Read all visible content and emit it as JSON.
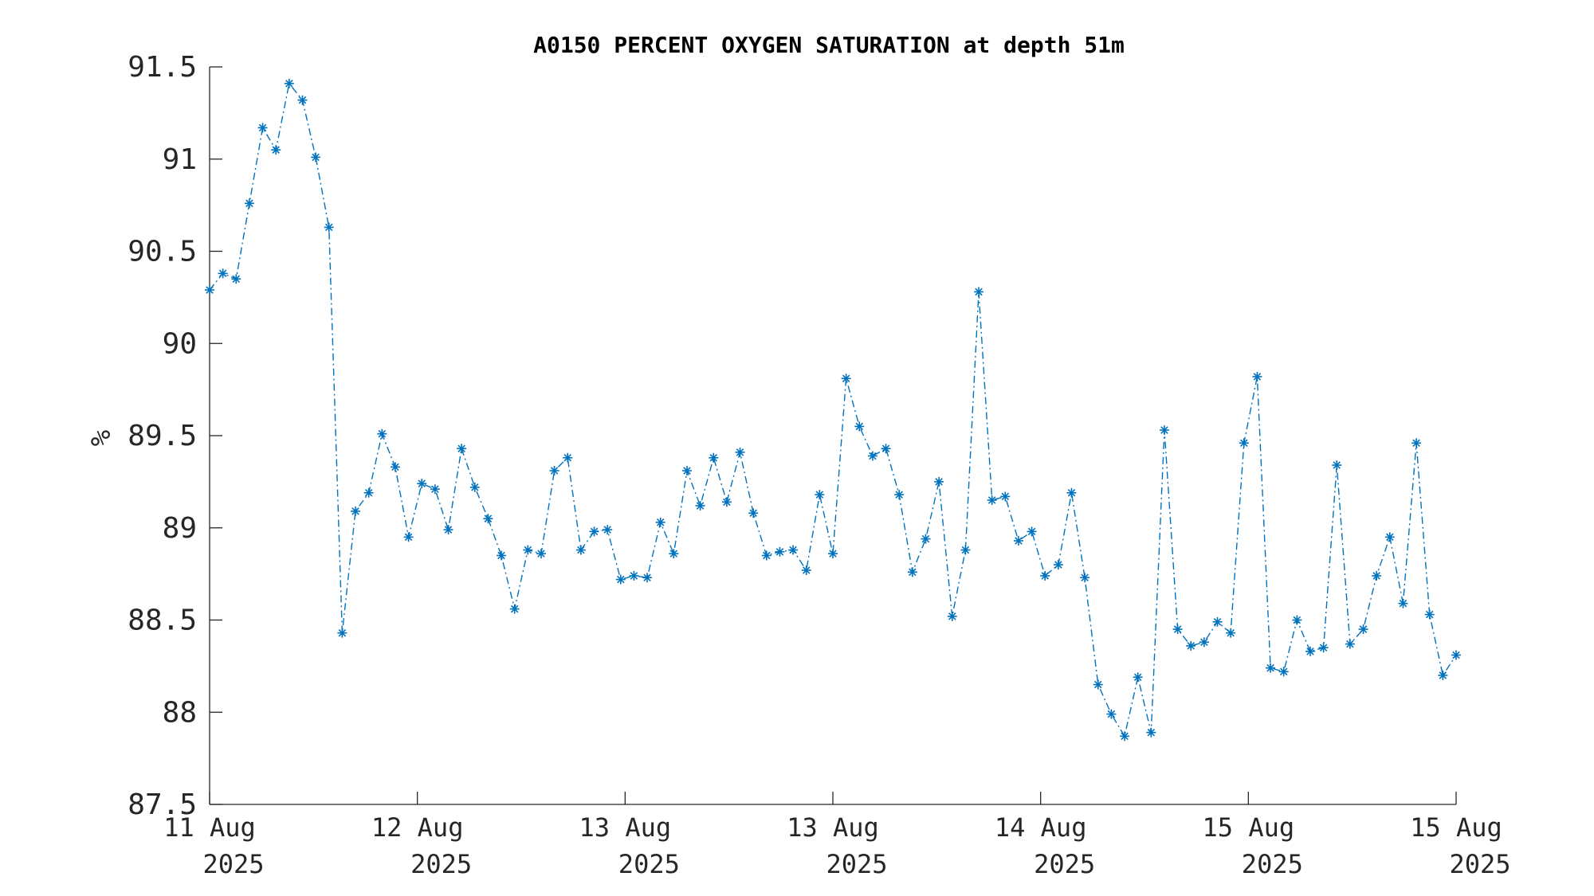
{
  "chart_data": {
    "type": "line",
    "title": "A0150 PERCENT OXYGEN SATURATION at depth 51m",
    "xlabel": "",
    "ylabel": "%",
    "ylim": [
      87.5,
      91.5
    ],
    "yticks": [
      "91.5",
      "91",
      "90.5",
      "90",
      "89.5",
      "89",
      "88.5",
      "88",
      "87.5"
    ],
    "xticks": [
      {
        "day": "11 Aug",
        "year": "2025"
      },
      {
        "day": "12 Aug",
        "year": "2025"
      },
      {
        "day": "13 Aug",
        "year": "2025"
      },
      {
        "day": "13 Aug",
        "year": "2025"
      },
      {
        "day": "14 Aug",
        "year": "2025"
      },
      {
        "day": "15 Aug",
        "year": "2025"
      },
      {
        "day": "15 Aug",
        "year": "2025"
      }
    ],
    "grid": false,
    "line_style": "dash-dot",
    "marker": "asterisk",
    "color": "#0072bd",
    "series": [
      {
        "values": [
          90.29,
          90.38,
          90.35,
          90.76,
          91.17,
          91.05,
          91.41,
          91.32,
          91.01,
          90.63,
          88.43,
          89.09,
          89.19,
          89.51,
          89.33,
          88.95,
          89.24,
          89.21,
          88.99,
          89.43,
          89.22,
          89.05,
          88.85,
          88.56,
          88.88,
          88.86,
          89.31,
          89.38,
          88.88,
          88.98,
          88.99,
          88.72,
          88.74,
          88.73,
          89.03,
          88.86,
          89.31,
          89.12,
          89.38,
          89.14,
          89.41,
          89.08,
          88.85,
          88.87,
          88.88,
          88.77,
          89.18,
          88.86,
          89.81,
          89.55,
          89.39,
          89.43,
          89.18,
          88.76,
          88.94,
          89.25,
          88.52,
          88.88,
          90.28,
          89.15,
          89.17,
          88.93,
          88.98,
          88.74,
          88.8,
          89.19,
          88.73,
          88.15,
          87.99,
          87.87,
          88.19,
          87.89,
          89.53,
          88.45,
          88.36,
          88.38,
          88.49,
          88.43,
          89.46,
          89.82,
          88.24,
          88.22,
          88.5,
          88.33,
          88.35,
          89.34,
          88.37,
          88.45,
          88.74,
          88.95,
          88.59,
          89.46,
          88.53,
          88.2,
          88.31
        ]
      }
    ]
  }
}
